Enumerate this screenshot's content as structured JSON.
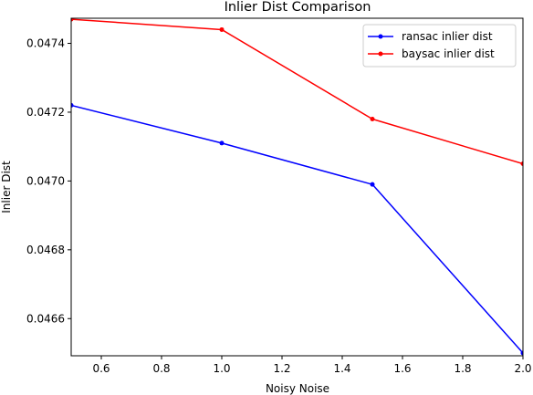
{
  "chart_data": {
    "type": "line",
    "title": "Inlier Dist Comparison",
    "xlabel": "Noisy Noise",
    "ylabel": "Inlier Dist",
    "xlim": [
      0.5,
      2.0
    ],
    "ylim": [
      0.046492,
      0.047473
    ],
    "xticks": [
      "0.6",
      "0.8",
      "1.0",
      "1.2",
      "1.4",
      "1.6",
      "1.8",
      "2.0"
    ],
    "yticks": [
      "0.0466",
      "0.0468",
      "0.0470",
      "0.0472",
      "0.0474"
    ],
    "grid": false,
    "legend_position": "top-right",
    "series": [
      {
        "name": "ransac inlier dist",
        "color": "#0000ff",
        "marker": "point",
        "x": [
          0.5,
          1.0,
          1.5,
          2.0
        ],
        "y": [
          0.04722,
          0.04711,
          0.04699,
          0.0465
        ]
      },
      {
        "name": "baysac inlier dist",
        "color": "#ff0000",
        "marker": "point",
        "x": [
          0.5,
          1.0,
          1.5,
          2.0
        ],
        "y": [
          0.04747,
          0.04744,
          0.04718,
          0.04705
        ]
      }
    ]
  }
}
